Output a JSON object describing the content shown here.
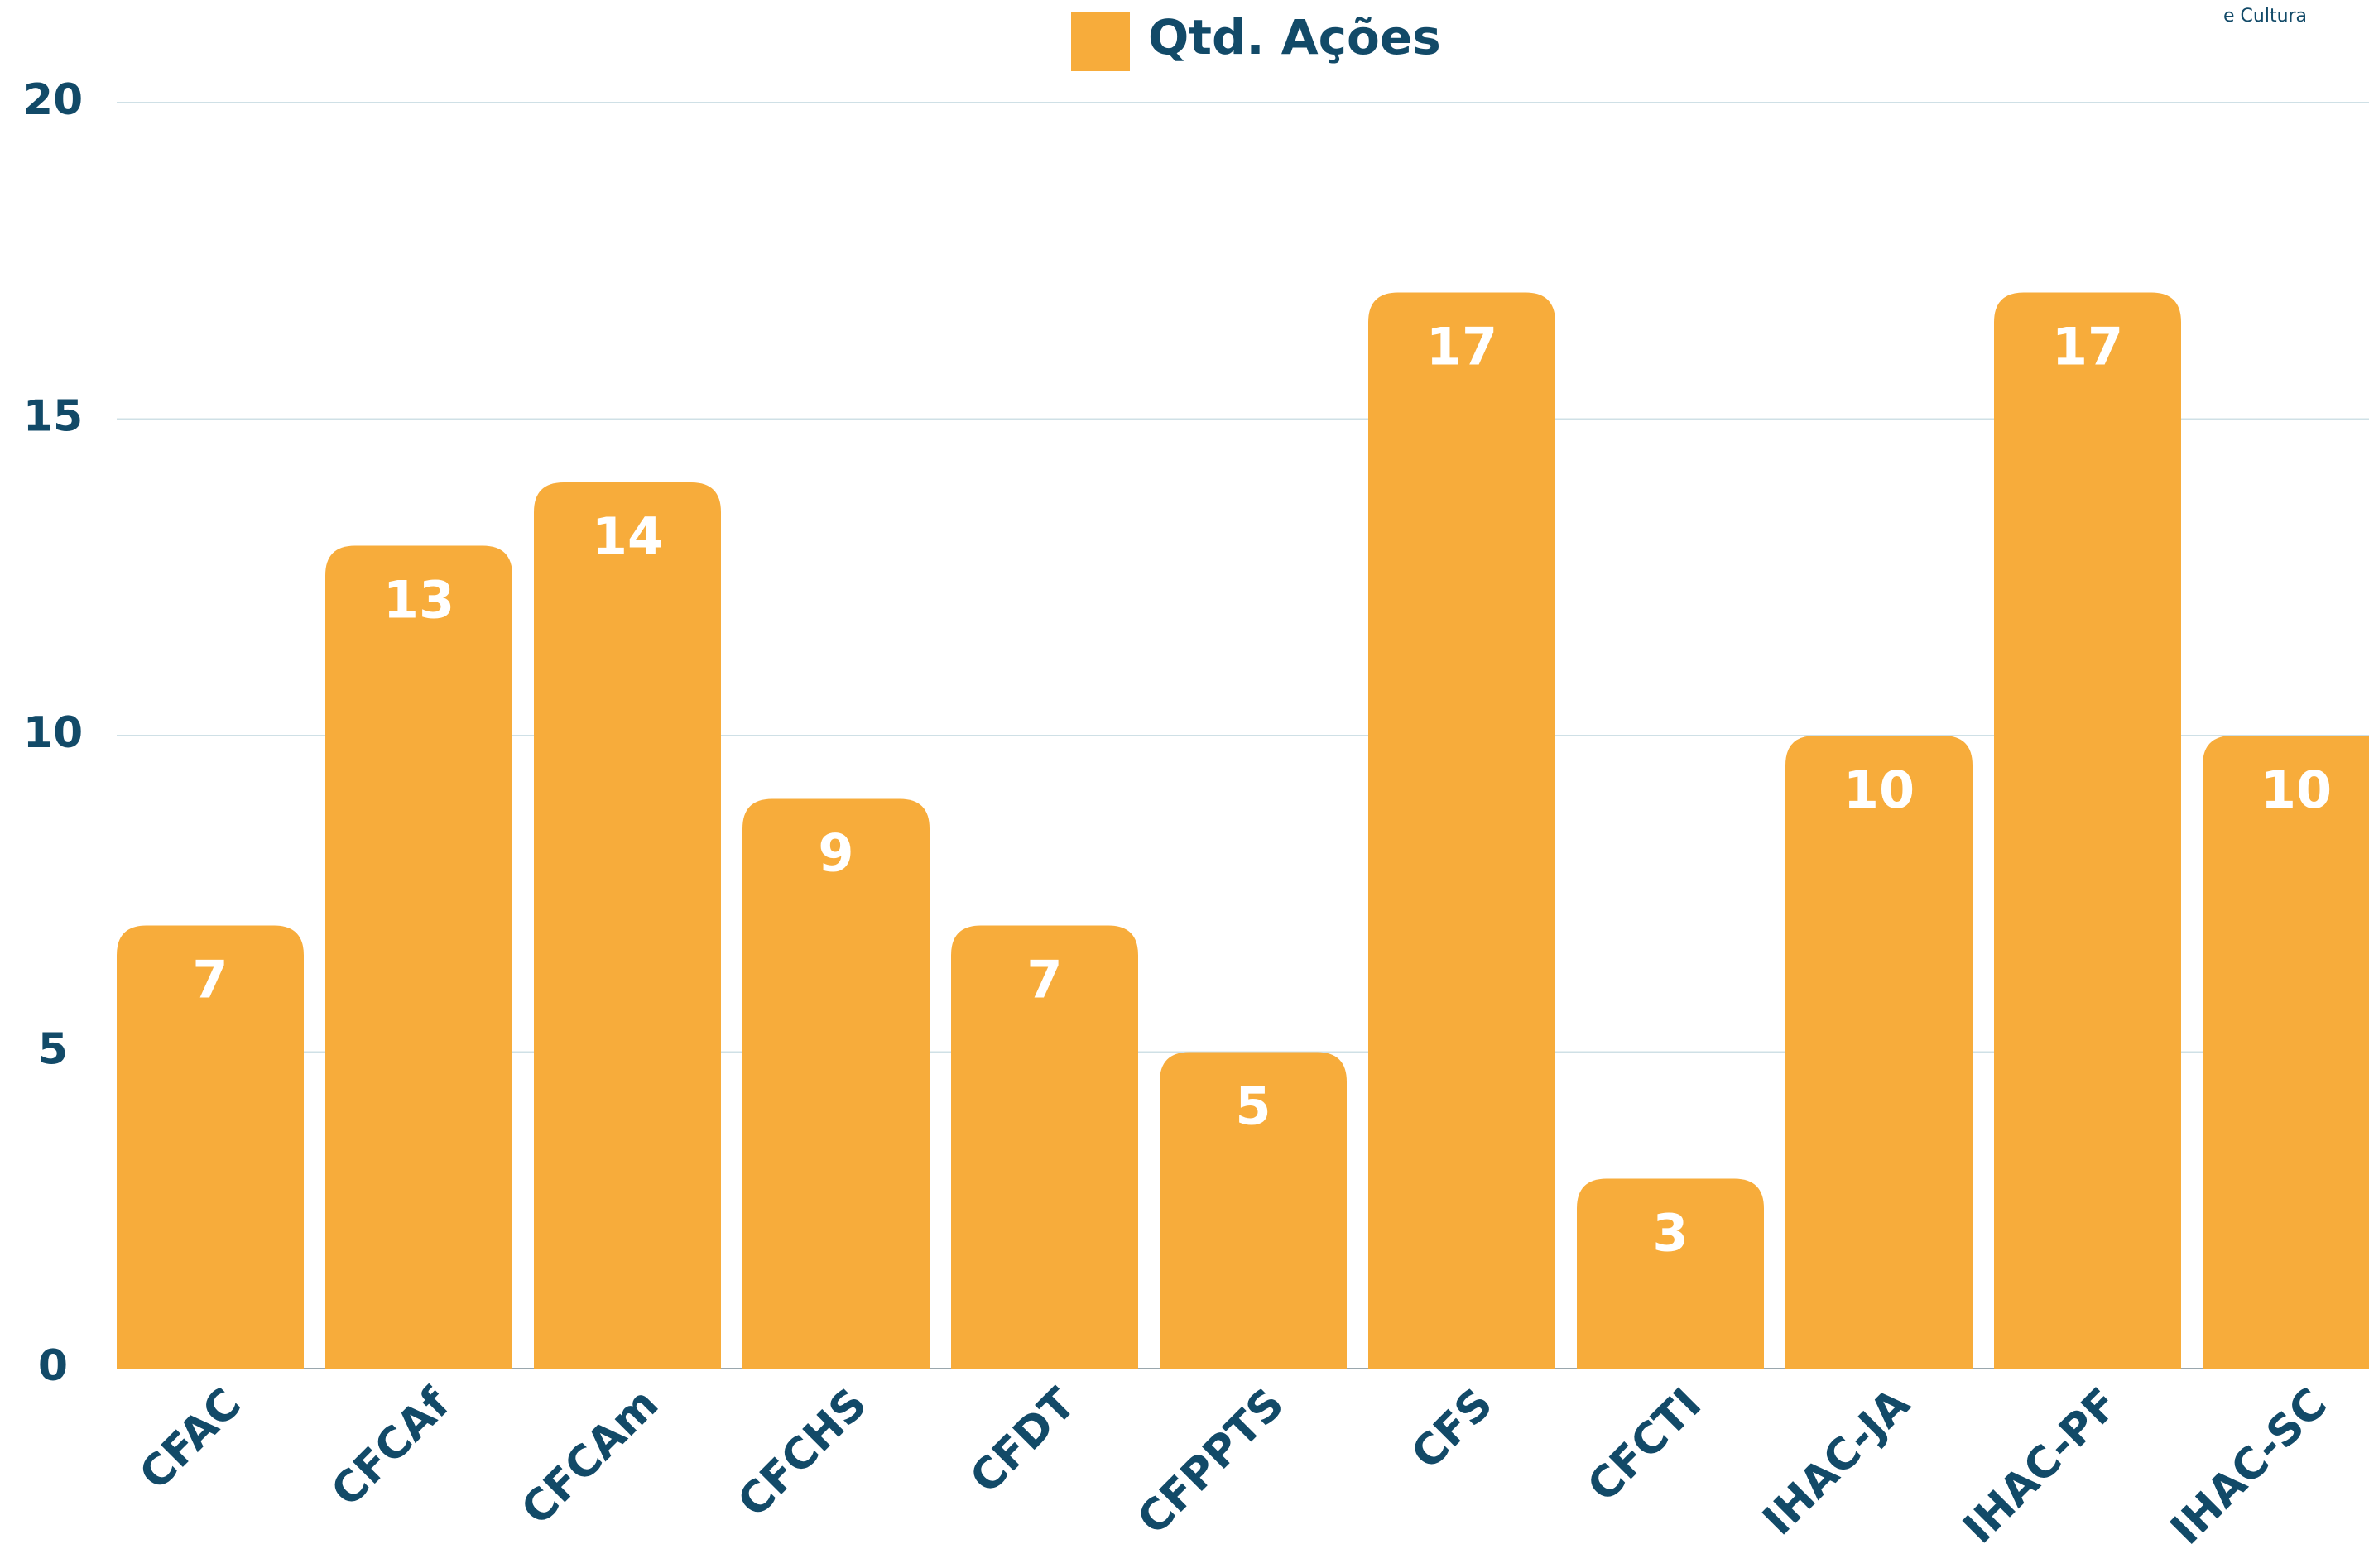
{
  "chart_data": {
    "type": "bar",
    "legend": "Qtd. Ações",
    "logo_text": "e Cultura",
    "categories": [
      "CFAC",
      "CFCAf",
      "CFCAm",
      "CFCHS",
      "CFDT",
      "CFPPTS",
      "CFS",
      "CFCTI",
      "IHAC-JA",
      "IHAC-PF",
      "IHAC-SC"
    ],
    "values": [
      7,
      13,
      14,
      9,
      7,
      5,
      17,
      3,
      10,
      17,
      10
    ],
    "color": "#f7ac3b",
    "ylim": [
      0,
      20
    ],
    "yticks": [
      0,
      5,
      10,
      15,
      20
    ],
    "grid": true
  }
}
